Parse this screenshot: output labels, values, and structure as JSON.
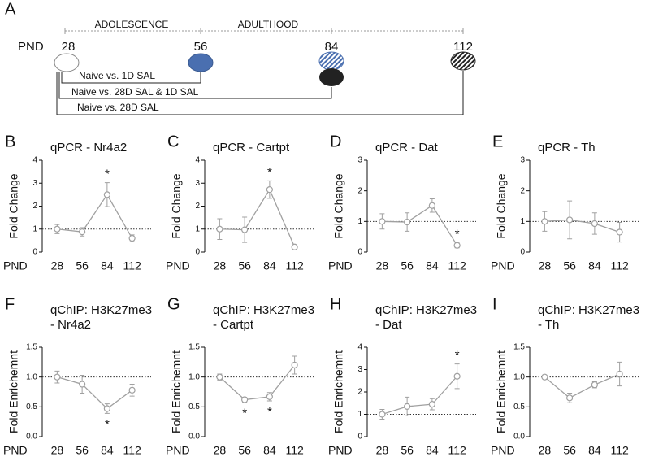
{
  "timeline": {
    "label": "A",
    "unit": "PND",
    "ages": [
      "28",
      "56",
      "84",
      "112"
    ],
    "periods": [
      "ADOLESCENCE",
      "ADULTHOOD"
    ],
    "comparisons": [
      "Naive vs. 1D SAL",
      "Naive vs. 28D SAL & 1D SAL",
      "Naive vs. 28D SAL"
    ]
  },
  "chart_data": [
    {
      "type": "line",
      "label": "B",
      "title": "qPCR - Nr4a2",
      "y_label": "Fold Change",
      "x_label": "PND",
      "categories": [
        "28",
        "56",
        "84",
        "112"
      ],
      "values": [
        1.0,
        0.88,
        2.5,
        0.6
      ],
      "errors": [
        0.2,
        0.18,
        0.52,
        0.15
      ],
      "color": "#a0a0a0",
      "ylim": [
        0,
        4
      ],
      "yticks": [
        0,
        1,
        2,
        3,
        4
      ],
      "reference_line": 1,
      "annotations": [
        {
          "text": "*",
          "category": "84",
          "position": "above"
        }
      ]
    },
    {
      "type": "line",
      "label": "C",
      "title": "qPCR - Cartpt",
      "y_label": "Fold Change",
      "x_label": "PND",
      "categories": [
        "28",
        "56",
        "84",
        "112"
      ],
      "values": [
        1.0,
        0.97,
        2.72,
        0.22
      ],
      "errors": [
        0.45,
        0.55,
        0.38,
        0.08
      ],
      "color": "#a0a0a0",
      "ylim": [
        0,
        4
      ],
      "yticks": [
        0,
        1,
        2,
        3,
        4
      ],
      "reference_line": 1,
      "annotations": [
        {
          "text": "*",
          "category": "84",
          "position": "above"
        }
      ]
    },
    {
      "type": "line",
      "label": "D",
      "title": "qPCR - Dat",
      "y_label": "Fold Change",
      "x_label": "PND",
      "categories": [
        "28",
        "56",
        "84",
        "112"
      ],
      "values": [
        1.0,
        0.98,
        1.52,
        0.22
      ],
      "errors": [
        0.25,
        0.3,
        0.22,
        0.08
      ],
      "color": "#a0a0a0",
      "ylim": [
        0,
        3
      ],
      "yticks": [
        0,
        1,
        2,
        3
      ],
      "reference_line": 1,
      "annotations": [
        {
          "text": "*",
          "category": "112",
          "position": "above"
        }
      ]
    },
    {
      "type": "line",
      "label": "E",
      "title": "qPCR - Th",
      "y_label": "Fold Change",
      "x_label": "PND",
      "categories": [
        "28",
        "56",
        "84",
        "112"
      ],
      "values": [
        1.0,
        1.05,
        0.93,
        0.65
      ],
      "errors": [
        0.32,
        0.62,
        0.35,
        0.32
      ],
      "color": "#a0a0a0",
      "ylim": [
        0,
        3
      ],
      "yticks": [
        0,
        1,
        2,
        3
      ],
      "reference_line": 1,
      "annotations": []
    },
    {
      "type": "line",
      "label": "F",
      "title": "qChIP: H3K27me3",
      "subtitle": "- Nr4a2",
      "y_label": "Fold Enrichemnt",
      "x_label": "PND",
      "categories": [
        "28",
        "56",
        "84",
        "112"
      ],
      "values": [
        1.0,
        0.88,
        0.47,
        0.78
      ],
      "errors": [
        0.1,
        0.15,
        0.08,
        0.1
      ],
      "color": "#a0a0a0",
      "ylim": [
        0,
        1.5
      ],
      "yticks": [
        {
          "value": 0,
          "label": "0.0"
        },
        0.5,
        {
          "value": 1,
          "label": "1.0"
        },
        1.5
      ],
      "reference_line": 1,
      "annotations": [
        {
          "text": "*",
          "category": "84",
          "position": "below"
        }
      ]
    },
    {
      "type": "line",
      "label": "G",
      "title": "qChIP: H3K27me3",
      "subtitle": "- Cartpt",
      "y_label": "Fold Enrichemnt",
      "x_label": "PND",
      "categories": [
        "28",
        "56",
        "84",
        "112"
      ],
      "values": [
        1.0,
        0.62,
        0.67,
        1.2
      ],
      "errors": [
        0.05,
        0.04,
        0.07,
        0.15
      ],
      "color": "#a0a0a0",
      "ylim": [
        0,
        1.5
      ],
      "yticks": [
        {
          "value": 0,
          "label": "0.0"
        },
        0.5,
        {
          "value": 1,
          "label": "1.0"
        },
        1.5
      ],
      "reference_line": 1,
      "annotations": [
        {
          "text": "*",
          "category": "56",
          "position": "below"
        },
        {
          "text": "*",
          "category": "84",
          "position": "below"
        }
      ]
    },
    {
      "type": "line",
      "label": "H",
      "title": "qChIP: H3K27me3",
      "subtitle": "- Dat",
      "y_label": "Fold Enrichemnt",
      "x_label": "PND",
      "categories": [
        "28",
        "56",
        "84",
        "112"
      ],
      "values": [
        1.0,
        1.35,
        1.45,
        2.7
      ],
      "errors": [
        0.22,
        0.42,
        0.25,
        0.55
      ],
      "color": "#a0a0a0",
      "ylim": [
        0,
        4
      ],
      "yticks": [
        0,
        1,
        2,
        3,
        4
      ],
      "reference_line": 1,
      "annotations": [
        {
          "text": "*",
          "category": "112",
          "position": "above"
        }
      ]
    },
    {
      "type": "line",
      "label": "I",
      "title": "qChIP: H3K27me3",
      "subtitle": "- Th",
      "y_label": "Fold Enrichemnt",
      "x_label": "PND",
      "categories": [
        "28",
        "56",
        "84",
        "112"
      ],
      "values": [
        1.0,
        0.65,
        0.87,
        1.05
      ],
      "errors": [
        0.02,
        0.08,
        0.05,
        0.2
      ],
      "color": "#a0a0a0",
      "ylim": [
        0,
        1.5
      ],
      "yticks": [
        {
          "value": 0,
          "label": "0.0"
        },
        0.5,
        {
          "value": 1,
          "label": "1.0"
        },
        1.5
      ],
      "reference_line": 1,
      "annotations": []
    }
  ]
}
